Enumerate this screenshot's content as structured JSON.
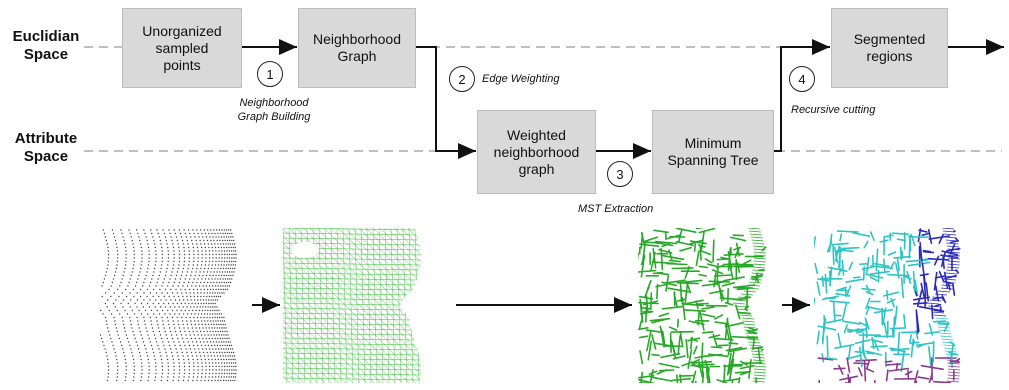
{
  "spaces": {
    "euclidian": "Euclidian\nSpace",
    "attribute": "Attribute\nSpace"
  },
  "boxes": {
    "unorganized": "Unorganized\nsampled\npoints",
    "neighborhood": "Neighborhood\nGraph",
    "weighted": "Weighted\nneighborhood\ngraph",
    "mst": "Minimum\nSpanning Tree",
    "segmented": "Segmented\nregions"
  },
  "steps": [
    {
      "num": "1",
      "label": "Neighborhood\nGraph Building"
    },
    {
      "num": "2",
      "label": "Edge Weighting"
    },
    {
      "num": "3",
      "label": "MST Extraction"
    },
    {
      "num": "4",
      "label": "Recursive cutting"
    }
  ],
  "colors": {
    "box_fill": "#d9d9d9",
    "dashed_line": "#aaaaaa",
    "points": "#444444",
    "graph_green": "#2eb82e",
    "mst_green": "#28a828",
    "segment_cyan": "#2ec4c4",
    "segment_blue": "#2a2ab8",
    "segment_purple": "#8a3a8a"
  }
}
